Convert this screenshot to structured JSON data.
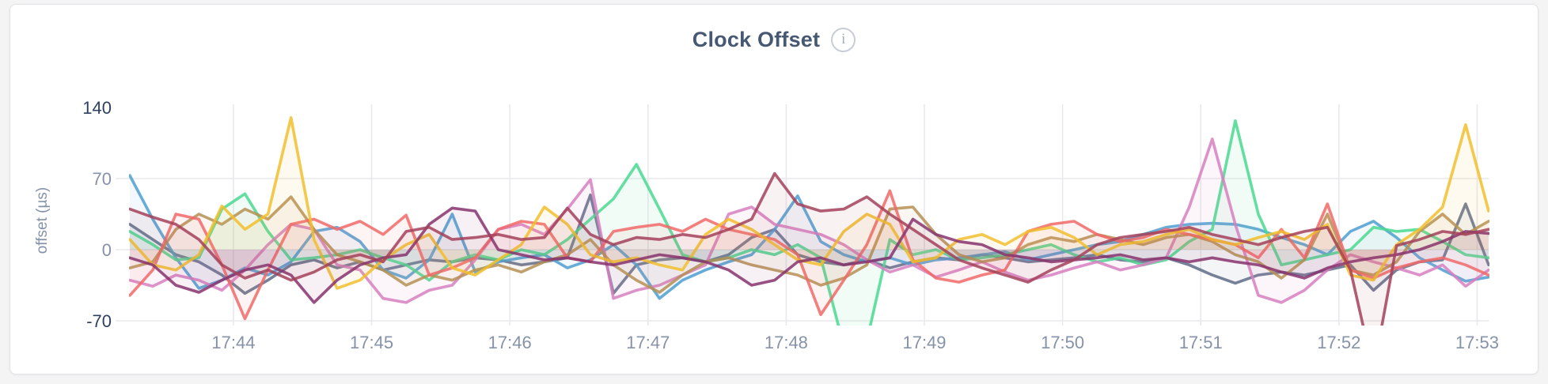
{
  "card": {
    "title": "Clock Offset",
    "info_icon": "i"
  },
  "chart_data": {
    "type": "line",
    "title": "Clock Offset",
    "xlabel": "",
    "ylabel": "offset (µs)",
    "ylim": [
      -70,
      140
    ],
    "yticks": [
      140,
      70,
      0,
      -70
    ],
    "grid": true,
    "legend": "none",
    "x_start": "17:43:15",
    "x_interval_seconds": 10,
    "xticklabels": [
      "17:44",
      "17:45",
      "17:46",
      "17:47",
      "17:48",
      "17:49",
      "17:50",
      "17:51",
      "17:52",
      "17:53"
    ],
    "xtick_indices": [
      4.5,
      10.5,
      16.5,
      22.5,
      28.5,
      34.5,
      40.5,
      46.5,
      52.5,
      58.5
    ],
    "axis": {
      "tick_strong": "#2f405f",
      "tick_muted": "#8692a9",
      "grid": "#e9e9ec"
    },
    "series": [
      {
        "name": "series-slate",
        "color": "#5F6C87",
        "values": [
          25,
          10,
          -5,
          -12,
          -25,
          -43,
          -30,
          -15,
          -10,
          -18,
          -12,
          -20,
          -15,
          -10,
          -12,
          -8,
          -10,
          -15,
          -12,
          -8,
          54,
          -43,
          -15,
          -10,
          -8,
          -12,
          -5,
          12,
          20,
          -5,
          -12,
          -15,
          -10,
          -18,
          -12,
          -8,
          -10,
          -5,
          -8,
          -12,
          -10,
          -8,
          -5,
          -10,
          -12,
          -8,
          -15,
          -25,
          -33,
          -25,
          -22,
          -25,
          -20,
          -15,
          -40,
          -20,
          -12,
          -10,
          45,
          -15
        ]
      },
      {
        "name": "series-blue",
        "color": "#4E9FD1",
        "values": [
          73,
          30,
          -8,
          -38,
          -30,
          -18,
          -25,
          -12,
          18,
          22,
          8,
          -20,
          -28,
          -10,
          35,
          -22,
          -12,
          -8,
          -5,
          -18,
          -10,
          5,
          -15,
          -48,
          -30,
          -20,
          -12,
          -5,
          20,
          53,
          8,
          -5,
          -12,
          -8,
          -15,
          -10,
          -8,
          -5,
          -2,
          -10,
          -5,
          0,
          5,
          8,
          15,
          22,
          25,
          26,
          25,
          20,
          12,
          5,
          -5,
          18,
          28,
          12,
          -8,
          -20,
          -31,
          -27
        ]
      },
      {
        "name": "series-green",
        "color": "#49D990",
        "values": [
          18,
          5,
          -10,
          -8,
          40,
          55,
          18,
          -10,
          -8,
          -5,
          0,
          -8,
          -15,
          -30,
          -12,
          -5,
          -10,
          0,
          -5,
          10,
          30,
          50,
          84,
          40,
          -5,
          -12,
          -8,
          0,
          -5,
          5,
          -8,
          -95,
          -90,
          10,
          -5,
          0,
          -10,
          -8,
          -5,
          0,
          5,
          -5,
          -12,
          -8,
          -15,
          -10,
          8,
          20,
          127,
          35,
          -15,
          -10,
          -5,
          0,
          22,
          18,
          20,
          8,
          -5,
          -8
        ]
      },
      {
        "name": "series-pink",
        "color": "#D77FBF",
        "values": [
          -30,
          -36,
          -25,
          -30,
          -40,
          -20,
          5,
          25,
          20,
          -15,
          -20,
          -48,
          -52,
          -40,
          -35,
          -10,
          20,
          25,
          15,
          40,
          69,
          -48,
          -40,
          -35,
          -25,
          -15,
          35,
          42,
          25,
          20,
          15,
          5,
          -10,
          -22,
          -15,
          -27,
          -20,
          -12,
          -22,
          -30,
          -25,
          -18,
          -12,
          -20,
          -15,
          -8,
          42,
          109,
          25,
          -45,
          -52,
          -40,
          -20,
          -5,
          -12,
          -18,
          -25,
          -15,
          -36,
          -20
        ]
      },
      {
        "name": "series-olive",
        "color": "#B59153",
        "values": [
          -18,
          -12,
          20,
          35,
          25,
          40,
          30,
          52,
          20,
          -5,
          -12,
          -20,
          -35,
          -25,
          -30,
          -20,
          -15,
          -22,
          -12,
          -5,
          10,
          -15,
          -30,
          -42,
          -25,
          -12,
          -8,
          -15,
          -20,
          -25,
          -35,
          -28,
          -15,
          40,
          42,
          15,
          -5,
          -12,
          -8,
          5,
          12,
          8,
          15,
          10,
          5,
          12,
          15,
          8,
          -5,
          -12,
          -28,
          -10,
          35,
          -20,
          -25,
          -12,
          18,
          35,
          15,
          28
        ]
      },
      {
        "name": "series-red",
        "color": "#F16969",
        "values": [
          -45,
          -20,
          35,
          30,
          -15,
          -68,
          -20,
          25,
          30,
          20,
          28,
          15,
          34,
          -25,
          -18,
          -8,
          20,
          28,
          25,
          -8,
          -12,
          18,
          22,
          25,
          18,
          30,
          20,
          15,
          10,
          -5,
          -64,
          -30,
          5,
          58,
          -10,
          -28,
          -32,
          -25,
          -20,
          18,
          25,
          28,
          15,
          8,
          12,
          20,
          15,
          10,
          5,
          -8,
          20,
          -8,
          45,
          -20,
          -28,
          -18,
          -12,
          -8,
          -15,
          -25
        ]
      },
      {
        "name": "series-yellow",
        "color": "#F2BE2C",
        "values": [
          10,
          -15,
          -20,
          -5,
          43,
          20,
          35,
          130,
          10,
          -38,
          -30,
          -10,
          5,
          15,
          -18,
          -25,
          -10,
          5,
          42,
          25,
          -5,
          -12,
          -8,
          -15,
          -20,
          15,
          30,
          20,
          5,
          -10,
          -15,
          18,
          35,
          25,
          -12,
          -8,
          10,
          15,
          5,
          18,
          22,
          12,
          -5,
          5,
          8,
          15,
          20,
          10,
          5,
          12,
          18,
          10,
          25,
          -25,
          -30,
          5,
          20,
          42,
          123,
          38
        ]
      },
      {
        "name": "series-purple",
        "color": "#87326D",
        "values": [
          -8,
          -15,
          -35,
          -42,
          -30,
          -20,
          -15,
          -25,
          -52,
          -30,
          -15,
          -8,
          -5,
          25,
          41,
          38,
          0,
          -5,
          -10,
          -8,
          -12,
          -15,
          -10,
          -5,
          -8,
          -12,
          -20,
          -35,
          -30,
          -12,
          -8,
          -15,
          -12,
          -8,
          30,
          15,
          8,
          5,
          -5,
          -8,
          -12,
          -10,
          -8,
          -5,
          -10,
          -8,
          -12,
          -8,
          -12,
          -15,
          -22,
          -28,
          -18,
          -12,
          -8,
          -5,
          0,
          8,
          18,
          16
        ]
      },
      {
        "name": "series-maroon",
        "color": "#A3415B",
        "values": [
          40,
          32,
          25,
          10,
          -15,
          -28,
          -20,
          -30,
          -22,
          -10,
          -5,
          -12,
          18,
          22,
          10,
          12,
          15,
          10,
          12,
          41,
          15,
          5,
          12,
          10,
          15,
          12,
          20,
          30,
          75,
          45,
          38,
          40,
          52,
          35,
          20,
          5,
          -10,
          -18,
          -25,
          -32,
          -20,
          -10,
          5,
          12,
          15,
          18,
          22,
          15,
          10,
          5,
          12,
          18,
          22,
          -20,
          -120,
          4,
          10,
          18,
          15,
          20
        ]
      }
    ]
  }
}
